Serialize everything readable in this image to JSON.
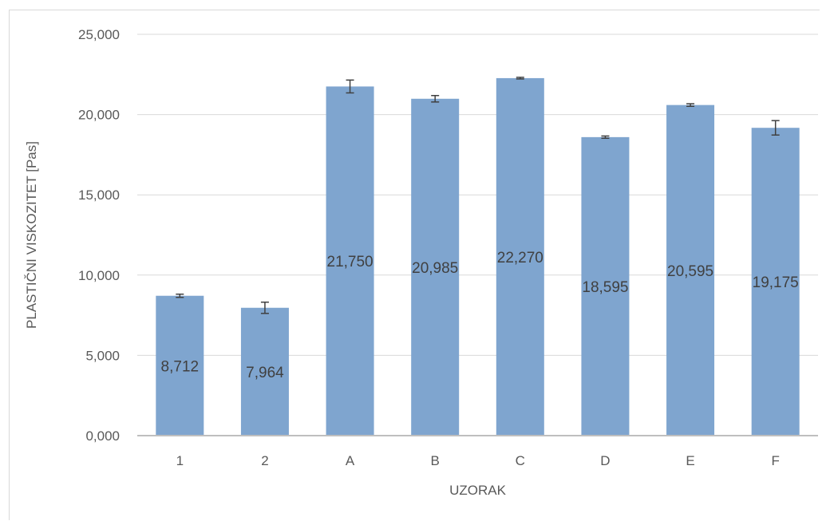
{
  "chart_data": {
    "type": "bar",
    "title": "",
    "xlabel": "UZORAK",
    "ylabel": "PLASTIČNI VISKOZITET [Pas]",
    "categories": [
      "1",
      "2",
      "A",
      "B",
      "C",
      "D",
      "E",
      "F"
    ],
    "values": [
      8.712,
      7.964,
      21.75,
      20.985,
      22.27,
      18.595,
      20.595,
      19.175
    ],
    "value_labels": [
      "8,712",
      "7,964",
      "21,750",
      "20,985",
      "22,270",
      "18,595",
      "20,595",
      "19,175"
    ],
    "error": [
      0.1,
      0.35,
      0.4,
      0.2,
      0.05,
      0.07,
      0.08,
      0.45
    ],
    "ylim": [
      0,
      25
    ],
    "yticks": [
      0,
      5,
      10,
      15,
      20,
      25
    ],
    "ytick_labels": [
      "0,000",
      "5,000",
      "10,000",
      "15,000",
      "20,000",
      "25,000"
    ],
    "grid": true,
    "legend": "none",
    "colors": {
      "bar": "#7fa5cf",
      "grid": "#d9d9d9",
      "axis": "#bfbfbf",
      "error_bar": "#404040"
    }
  }
}
